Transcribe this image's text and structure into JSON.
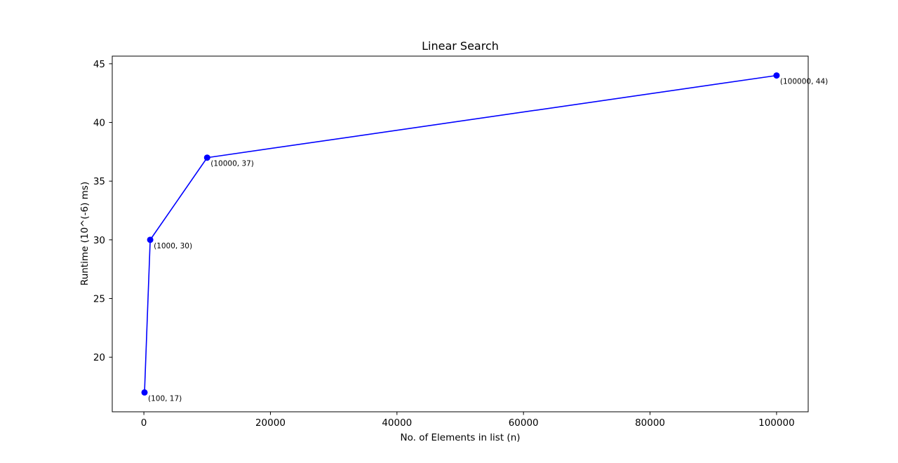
{
  "chart_data": {
    "type": "line",
    "title": "Linear Search",
    "xlabel": "No. of Elements in list (n)",
    "ylabel": "Runtime (10^(-6) ms)",
    "xlim": [
      -5000,
      105000
    ],
    "ylim": [
      15.35,
      45.65
    ],
    "x_ticks": [
      0,
      20000,
      40000,
      60000,
      80000,
      100000
    ],
    "y_ticks": [
      20,
      25,
      30,
      35,
      40,
      45
    ],
    "grid": false,
    "series": [
      {
        "color": "#0000ff",
        "marker": "circle",
        "x": [
          100,
          1000,
          10000,
          100000
        ],
        "y": [
          17,
          30,
          37,
          44
        ]
      }
    ],
    "annotations": [
      "(100, 17)",
      "(1000, 30)",
      "(10000, 37)",
      "(100000, 44)"
    ]
  }
}
